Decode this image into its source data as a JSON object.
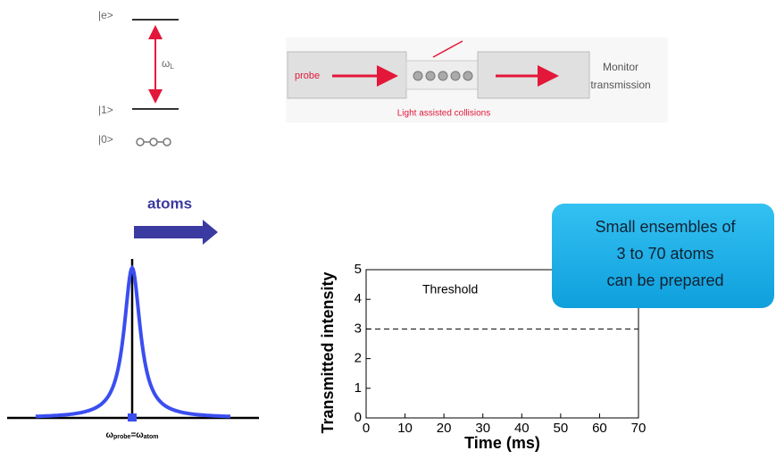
{
  "level_diagram": {
    "excited": "|e>",
    "ground1": "|1>",
    "ground0": "|0>",
    "transition": {
      "symbol": "ω",
      "sub": "L"
    }
  },
  "setup_diagram": {
    "probe": "probe",
    "collisions": "Light assisted collisions",
    "monitor": [
      "Monitor",
      "transmission"
    ]
  },
  "resonance": {
    "atoms": "atoms",
    "label": {
      "probe_symbol": "ω",
      "probe_sub": "probe",
      "equals": "=",
      "atom_symbol": "ω",
      "atom_sub": "atom"
    }
  },
  "callout": [
    "Small ensembles of",
    "3 to 70 atoms",
    "can be prepared"
  ],
  "chart_data": {
    "type": "line",
    "xlabel": "Time (ms)",
    "ylabel": "Transmitted intensity",
    "xlim": [
      0,
      70
    ],
    "xticks": [
      0,
      10,
      20,
      30,
      40,
      50,
      60,
      70
    ],
    "ylim": [
      0,
      5
    ],
    "yticks": [
      0,
      1,
      2,
      3,
      4,
      5
    ],
    "threshold": {
      "label": "Threshold",
      "value": 3
    }
  }
}
